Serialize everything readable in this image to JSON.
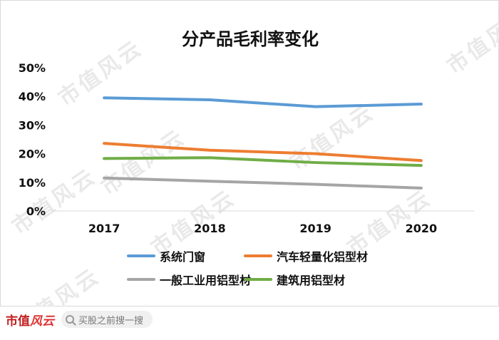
{
  "watermark_text": "市值风云",
  "footer": {
    "logo_text": "市值",
    "logo_accent": "风云",
    "search_placeholder": "买股之前搜一搜"
  },
  "chart_data": {
    "type": "line",
    "title": "分产品毛利率变化",
    "x": [
      "2017",
      "2018",
      "2019",
      "2020"
    ],
    "y_ticks": [
      "50%",
      "40%",
      "30%",
      "20%",
      "10%",
      "0%"
    ],
    "ylim": [
      0,
      50
    ],
    "grid": false,
    "legend_placement": "bottom",
    "series": [
      {
        "name": "系统门窗",
        "values": [
          39.5,
          38.8,
          36.4,
          37.3
        ],
        "color": "#5b9bd5"
      },
      {
        "name": "汽车轻量化铝型材",
        "values": [
          23.6,
          21.2,
          20.0,
          17.6
        ],
        "color": "#ed7d31"
      },
      {
        "name": "一般工业用铝型材",
        "values": [
          11.5,
          10.4,
          9.3,
          8.0
        ],
        "color": "#a5a5a5"
      },
      {
        "name": "建筑用铝型材",
        "values": [
          18.3,
          18.6,
          16.9,
          15.9
        ],
        "color": "#70ad47"
      }
    ]
  }
}
